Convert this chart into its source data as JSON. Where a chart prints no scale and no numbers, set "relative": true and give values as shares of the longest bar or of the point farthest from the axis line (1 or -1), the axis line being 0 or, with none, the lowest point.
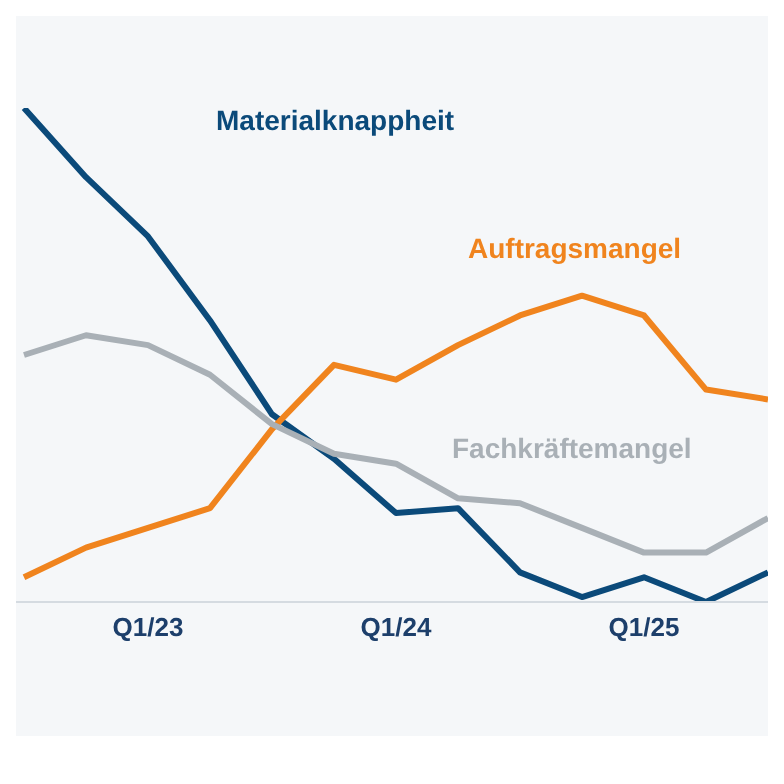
{
  "chart_data": {
    "type": "line",
    "relative": true,
    "categories": [
      null,
      null,
      "Q1/23",
      null,
      null,
      null,
      "Q1/24",
      null,
      null,
      null,
      "Q1/25",
      null,
      null
    ],
    "series": [
      {
        "name": "Materialknappheit",
        "color": "#0b4a7a",
        "values": [
          1,
          0.86,
          0.74,
          0.57,
          0.38,
          0.29,
          0.18,
          0.19,
          0.06,
          0.01,
          0.05,
          0,
          0.06
        ]
      },
      {
        "name": "Auftragsmangel",
        "color": "#f0841e",
        "values": [
          0.05,
          0.11,
          0.15,
          0.19,
          0.35,
          0.48,
          0.45,
          0.52,
          0.58,
          0.62,
          0.58,
          0.43,
          0.41
        ]
      },
      {
        "name": "Fachkräftemangel",
        "color": "#a9b0b6",
        "values": [
          0.5,
          0.54,
          0.52,
          0.46,
          0.36,
          0.3,
          0.28,
          0.21,
          0.2,
          0.15,
          0.1,
          0.1,
          0.17
        ]
      }
    ],
    "marker": "none"
  }
}
